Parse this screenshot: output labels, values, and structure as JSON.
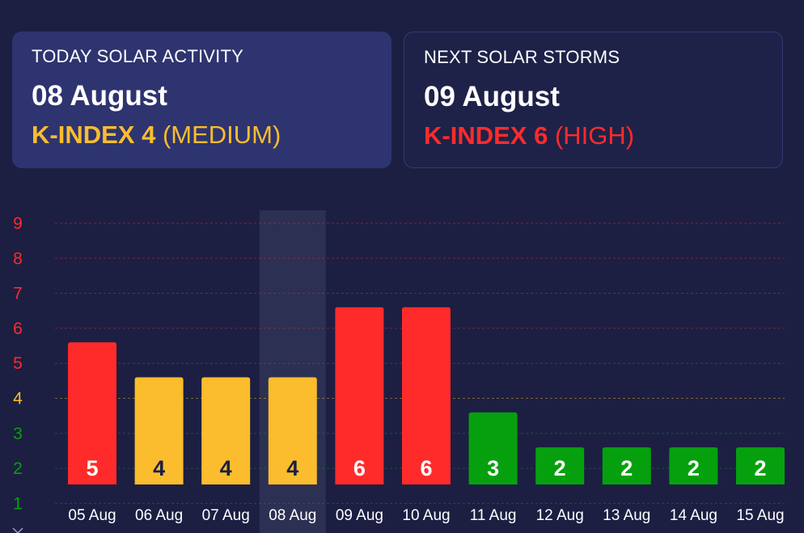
{
  "colors": {
    "background": "#1c1f42",
    "today_card": "#2e3470",
    "high": "#ff2b2b",
    "medium": "#fbbd2d",
    "low": "#06a00f",
    "highlight": "#2c3052"
  },
  "today": {
    "title": "TODAY SOLAR ACTIVITY",
    "date": "08 August",
    "k_label": "K-INDEX 4",
    "level": "(MEDIUM)",
    "level_color": "#fbbd2d"
  },
  "next": {
    "title": "NEXT SOLAR STORMS",
    "date": "09 August",
    "k_label": "K-INDEX 6",
    "level": "(HIGH)",
    "level_color": "#ff2b2b"
  },
  "chart_data": {
    "type": "bar",
    "categories": [
      "05 Aug",
      "06 Aug",
      "07 Aug",
      "08 Aug",
      "09 Aug",
      "10 Aug",
      "11 Aug",
      "12 Aug",
      "13 Aug",
      "14 Aug",
      "15 Aug"
    ],
    "values": [
      5,
      4,
      4,
      4,
      6,
      6,
      3,
      2,
      2,
      2,
      2
    ],
    "highlighted_category": "08 Aug",
    "yticks": [
      "1",
      "2",
      "3",
      "4",
      "5",
      "6",
      "7",
      "8",
      "9"
    ],
    "ylim": [
      1,
      9
    ],
    "grid": true,
    "legend": "none"
  }
}
